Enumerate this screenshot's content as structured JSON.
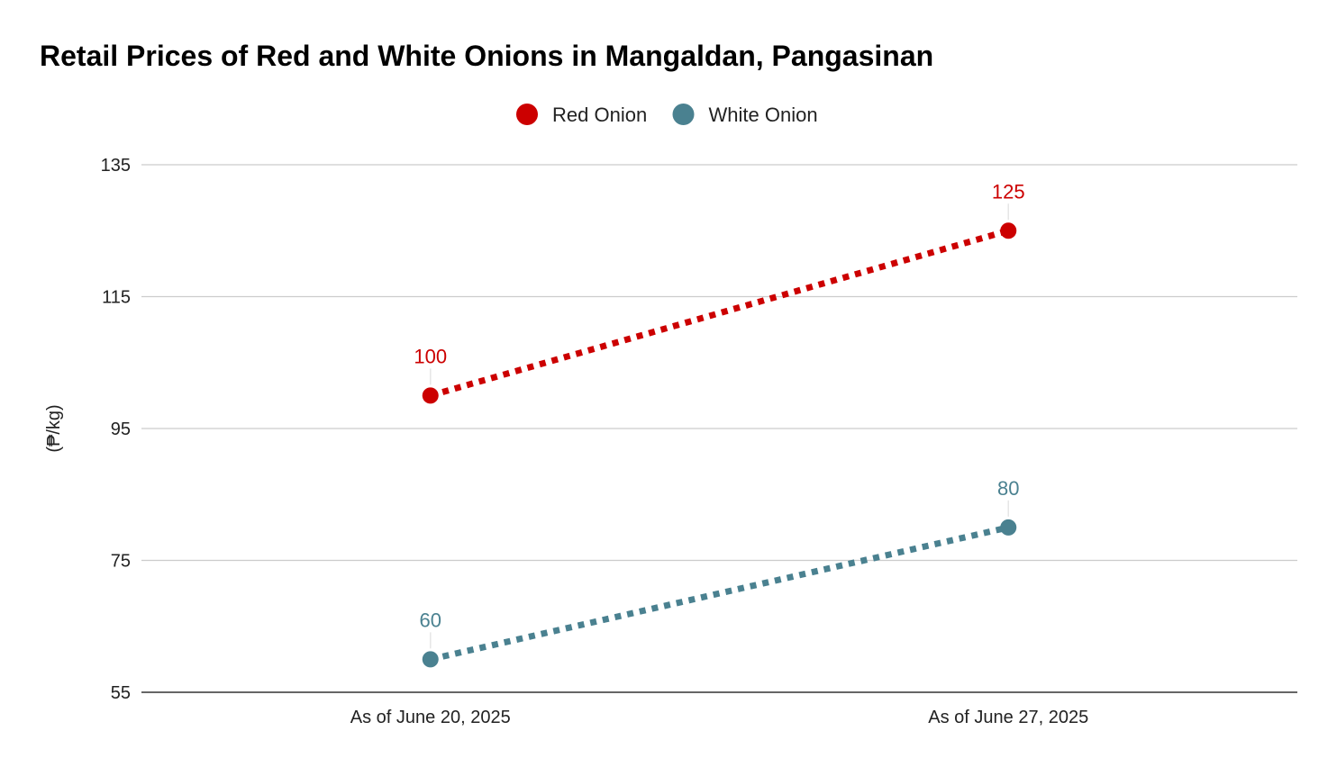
{
  "chart_data": {
    "type": "line",
    "title": "Retail Prices of Red and White Onions in Mangaldan, Pangasinan",
    "ylabel": "(₱/kg)",
    "xlabel": "",
    "categories": [
      "As of June 20, 2025",
      "As of June 27, 2025"
    ],
    "ylim": [
      55,
      135
    ],
    "yticks": [
      55,
      75,
      95,
      115,
      135
    ],
    "grid": true,
    "legend_position": "top-center",
    "line_style": "dotted",
    "data_labels": true,
    "series": [
      {
        "name": "Red Onion",
        "color": "#cc0000",
        "values": [
          100,
          125
        ]
      },
      {
        "name": "White Onion",
        "color": "#4a8190",
        "values": [
          60,
          80
        ]
      }
    ]
  }
}
